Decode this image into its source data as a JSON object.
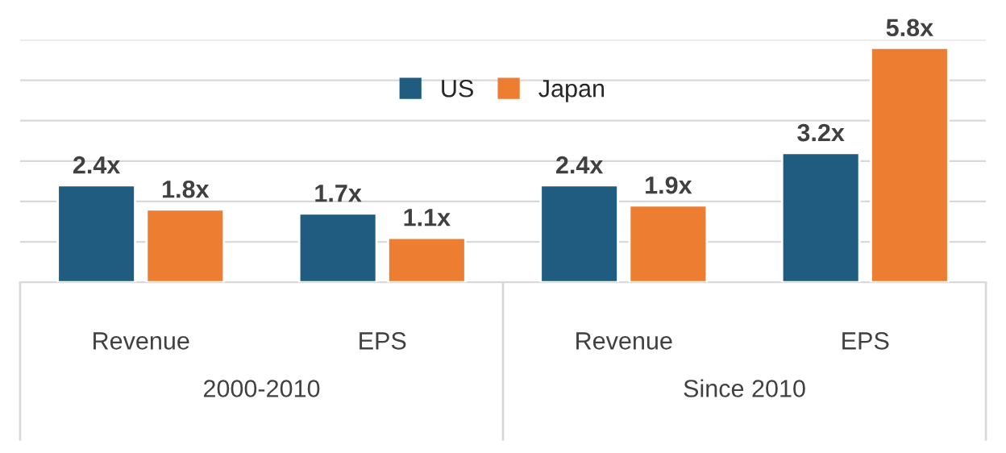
{
  "chart_data": {
    "type": "bar",
    "categories": [
      "Revenue",
      "EPS",
      "Revenue",
      "EPS"
    ],
    "series": [
      {
        "name": "US",
        "color": "#1f5c80",
        "values": [
          2.4,
          1.7,
          2.4,
          3.2
        ],
        "value_labels": [
          "2.4x",
          "1.7x",
          "2.4x",
          "3.2x"
        ]
      },
      {
        "name": "Japan",
        "color": "#ed7d31",
        "values": [
          1.8,
          1.1,
          1.9,
          5.8
        ],
        "value_labels": [
          "1.8x",
          "1.1x",
          "1.9x",
          "5.8x"
        ]
      }
    ],
    "annotations": [
      "2000-2010",
      "Since 2010"
    ],
    "ylim": [
      0,
      6
    ],
    "yticks": [
      {
        "value": 0,
        "label": null
      },
      {
        "value": 1,
        "label": null
      },
      {
        "value": 2,
        "label": null
      },
      {
        "value": 3,
        "label": null
      },
      {
        "value": 4,
        "label": null
      },
      {
        "value": 5,
        "label": null
      },
      {
        "value": 6,
        "label": null
      }
    ],
    "tick_labels": "x",
    "grid": "y",
    "legend": "top"
  }
}
